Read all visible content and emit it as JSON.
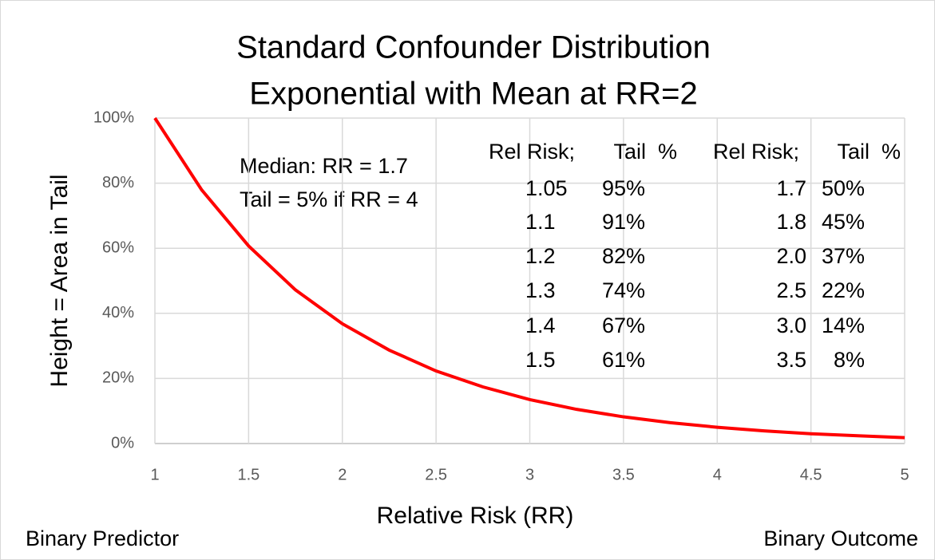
{
  "chart_data": {
    "type": "line",
    "title": [
      "Standard Confounder Distribution",
      "Exponential with Mean at RR=2"
    ],
    "x_label": "Relative Risk (RR)",
    "y_label": "Height = Area in Tail",
    "x": [
      1,
      1.25,
      1.5,
      1.75,
      2,
      2.25,
      2.5,
      2.75,
      3,
      3.25,
      3.5,
      3.75,
      4,
      4.25,
      4.5,
      4.75,
      5
    ],
    "series": [
      {
        "color": "#ff0000",
        "values": [
          100,
          77.9,
          60.7,
          47.2,
          36.8,
          28.7,
          22.3,
          17.4,
          13.5,
          10.5,
          8.2,
          6.4,
          5.0,
          3.9,
          3.0,
          2.4,
          1.8
        ]
      }
    ],
    "xlim": [
      1,
      5
    ],
    "xticks": [
      1,
      1.5,
      2,
      2.5,
      3,
      3.5,
      4,
      4.5,
      5
    ],
    "ylim": [
      0,
      100
    ],
    "yticks": [
      {
        "value": 0,
        "label": "0%"
      },
      {
        "value": 20,
        "label": "20%"
      },
      {
        "value": 40,
        "label": "40%"
      },
      {
        "value": 60,
        "label": "60%"
      },
      {
        "value": 80,
        "label": "80%"
      },
      {
        "value": 100,
        "label": "100%"
      }
    ],
    "grid": true,
    "annotations": [
      "Median: RR = 1.7",
      "Tail = 5% if RR = 4"
    ],
    "tables": [
      {
        "header": [
          "Rel Risk;",
          "Tail  %"
        ],
        "rows": [
          [
            "1.05",
            "95%"
          ],
          [
            "1.1",
            "91%"
          ],
          [
            "1.2",
            "82%"
          ],
          [
            "1.3",
            "74%"
          ],
          [
            "1.4",
            "67%"
          ],
          [
            "1.5",
            "61%"
          ]
        ]
      },
      {
        "header": [
          "Rel Risk;",
          "Tail  %"
        ],
        "rows": [
          [
            "1.7",
            "50%"
          ],
          [
            "1.8",
            "45%"
          ],
          [
            "2.0",
            "37%"
          ],
          [
            "2.5",
            "22%"
          ],
          [
            "3.0",
            "14%"
          ],
          [
            "3.5",
            "8%"
          ]
        ]
      }
    ],
    "footer": [
      "Binary Predictor",
      "Binary Outcome"
    ]
  }
}
